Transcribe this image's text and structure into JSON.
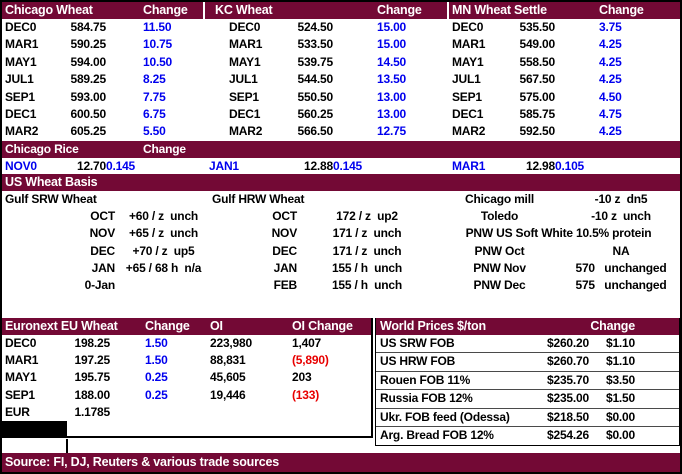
{
  "colors": {
    "maroon": "#730935",
    "change_blue": "#0000ee",
    "negative_red": "#e80000",
    "grid_black": "#000000"
  },
  "futures": {
    "tables": [
      {
        "title": "Chicago Wheat",
        "change_header": "Change",
        "rows": [
          [
            "DEC0",
            "584.75",
            "11.50"
          ],
          [
            "MAR1",
            "590.25",
            "10.75"
          ],
          [
            "MAY1",
            "594.00",
            "10.50"
          ],
          [
            "JUL1",
            "589.25",
            "8.25"
          ],
          [
            "SEP1",
            "593.00",
            "7.75"
          ],
          [
            "DEC1",
            "600.50",
            "6.75"
          ],
          [
            "MAR2",
            "605.25",
            "5.50"
          ]
        ]
      },
      {
        "title": "KC Wheat",
        "change_header": "Change",
        "rows": [
          [
            "DEC0",
            "524.50",
            "15.00"
          ],
          [
            "MAR1",
            "533.50",
            "15.00"
          ],
          [
            "MAY1",
            "539.75",
            "14.50"
          ],
          [
            "JUL1",
            "544.50",
            "13.50"
          ],
          [
            "SEP1",
            "550.50",
            "13.00"
          ],
          [
            "DEC1",
            "560.25",
            "13.00"
          ],
          [
            "MAR2",
            "566.50",
            "12.75"
          ]
        ]
      },
      {
        "title": "MN Wheat",
        "settle_header": "Settle",
        "change_header": "Change",
        "rows": [
          [
            "DEC0",
            "535.50",
            "3.75"
          ],
          [
            "MAR1",
            "549.00",
            "4.25"
          ],
          [
            "MAY1",
            "558.50",
            "4.25"
          ],
          [
            "JUL1",
            "567.50",
            "4.25"
          ],
          [
            "SEP1",
            "575.00",
            "4.50"
          ],
          [
            "DEC1",
            "585.75",
            "4.75"
          ],
          [
            "MAR2",
            "592.50",
            "4.25"
          ]
        ]
      }
    ]
  },
  "rice": {
    "title": "Chicago Rice",
    "change_header": "Change",
    "contracts": [
      [
        "NOV0",
        "12.70",
        "0.145"
      ],
      [
        "JAN1",
        "12.88",
        "0.145"
      ],
      [
        "MAR1",
        "12.98",
        "0.105"
      ]
    ]
  },
  "basis": {
    "title": "US Wheat Basis",
    "srw_heading": "Gulf SRW Wheat",
    "hrw_heading": "Gulf HRW Wheat",
    "srw": [
      [
        "OCT",
        "+60 / z  unch"
      ],
      [
        "NOV",
        "+65 / z  unch"
      ],
      [
        "DEC",
        "+70 / z  up5"
      ],
      [
        "JAN",
        "+65 / 68 h  n/a"
      ],
      [
        "0-Jan",
        ""
      ]
    ],
    "hrw": [
      [
        "OCT",
        "172 / z  up2"
      ],
      [
        "NOV",
        "171 / z  unch"
      ],
      [
        "DEC",
        "171 / z  unch"
      ],
      [
        "JAN",
        "155 / h  unch"
      ],
      [
        "FEB",
        "155 / h  unch"
      ]
    ],
    "domestic": [
      [
        "Chicago mill",
        "-10 z  dn5"
      ],
      [
        "Toledo",
        "-10 z  unch"
      ],
      [
        "PNW US Soft White 10.5% protein",
        ""
      ],
      [
        "PNW Oct",
        "NA"
      ],
      [
        "PNW Nov",
        "570   unchanged"
      ],
      [
        "PNW Dec",
        "575   unchanged"
      ]
    ]
  },
  "euronext": {
    "title": "Euronext EU Wheat",
    "change_header": "Change",
    "oi_header": "OI",
    "oi_change_header": "OI Change",
    "rows": [
      [
        "DEC0",
        "198.25",
        "1.50",
        "223,980",
        "1,407"
      ],
      [
        "MAR1",
        "197.25",
        "1.50",
        "88,831",
        "(5,890)"
      ],
      [
        "MAY1",
        "195.75",
        "0.25",
        "45,605",
        "203"
      ],
      [
        "SEP1",
        "188.00",
        "0.25",
        "19,446",
        "(133)"
      ]
    ],
    "eur_label": "EUR",
    "eur_value": "1.1785"
  },
  "world": {
    "title": "World Prices $/ton",
    "change_header": "Change",
    "rows": [
      [
        "US SRW FOB",
        "$260.20",
        "$1.10"
      ],
      [
        "US HRW FOB",
        "$260.70",
        "$1.10"
      ],
      [
        "Rouen FOB 11%",
        "$235.70",
        "$3.50"
      ],
      [
        "Russia FOB 12%",
        "$235.00",
        "$1.50"
      ],
      [
        "Ukr. FOB feed (Odessa)",
        "$218.50",
        "$0.00"
      ],
      [
        "Arg. Bread FOB 12%",
        "$254.26",
        "$0.00"
      ]
    ]
  },
  "footer": {
    "source": "Source: FI, DJ, Reuters & various trade sources"
  }
}
